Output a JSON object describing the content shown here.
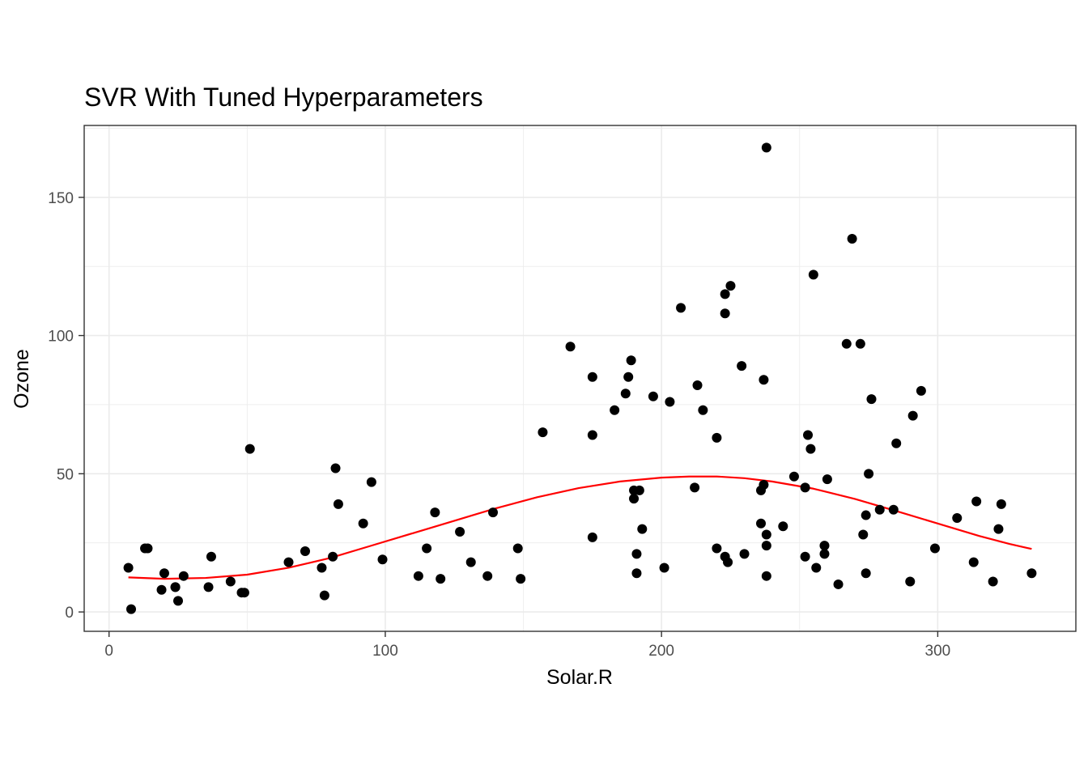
{
  "chart_data": {
    "type": "scatter",
    "title": "SVR With Tuned Hyperparameters",
    "xlabel": "Solar.R",
    "ylabel": "Ozone",
    "xlim": [
      -9,
      350
    ],
    "ylim": [
      -7,
      176
    ],
    "x_ticks": [
      0,
      100,
      200,
      300
    ],
    "y_ticks": [
      0,
      50,
      100,
      150
    ],
    "grid": true,
    "legend": "none",
    "colors": {
      "points": "#000000",
      "fit_line": "#ff0000",
      "grid": "#ebebeb",
      "panel_border": "#333333"
    },
    "points": [
      {
        "x": 7,
        "y": 16
      },
      {
        "x": 8,
        "y": 1
      },
      {
        "x": 13,
        "y": 23
      },
      {
        "x": 14,
        "y": 23
      },
      {
        "x": 19,
        "y": 8
      },
      {
        "x": 20,
        "y": 14
      },
      {
        "x": 24,
        "y": 9
      },
      {
        "x": 24,
        "y": 9
      },
      {
        "x": 25,
        "y": 4
      },
      {
        "x": 27,
        "y": 13
      },
      {
        "x": 36,
        "y": 9
      },
      {
        "x": 37,
        "y": 20
      },
      {
        "x": 44,
        "y": 11
      },
      {
        "x": 48,
        "y": 7
      },
      {
        "x": 49,
        "y": 7
      },
      {
        "x": 51,
        "y": 59
      },
      {
        "x": 65,
        "y": 18
      },
      {
        "x": 71,
        "y": 22
      },
      {
        "x": 77,
        "y": 16
      },
      {
        "x": 78,
        "y": 6
      },
      {
        "x": 81,
        "y": 20
      },
      {
        "x": 82,
        "y": 52
      },
      {
        "x": 83,
        "y": 39
      },
      {
        "x": 92,
        "y": 32
      },
      {
        "x": 95,
        "y": 47
      },
      {
        "x": 99,
        "y": 19
      },
      {
        "x": 112,
        "y": 13
      },
      {
        "x": 115,
        "y": 23
      },
      {
        "x": 118,
        "y": 36
      },
      {
        "x": 120,
        "y": 12
      },
      {
        "x": 127,
        "y": 29
      },
      {
        "x": 131,
        "y": 18
      },
      {
        "x": 137,
        "y": 13
      },
      {
        "x": 139,
        "y": 36
      },
      {
        "x": 148,
        "y": 23
      },
      {
        "x": 149,
        "y": 12
      },
      {
        "x": 157,
        "y": 65
      },
      {
        "x": 167,
        "y": 96
      },
      {
        "x": 175,
        "y": 85
      },
      {
        "x": 175,
        "y": 64
      },
      {
        "x": 175,
        "y": 27
      },
      {
        "x": 183,
        "y": 73
      },
      {
        "x": 187,
        "y": 79
      },
      {
        "x": 188,
        "y": 85
      },
      {
        "x": 189,
        "y": 91
      },
      {
        "x": 190,
        "y": 44
      },
      {
        "x": 190,
        "y": 41
      },
      {
        "x": 191,
        "y": 21
      },
      {
        "x": 191,
        "y": 14
      },
      {
        "x": 192,
        "y": 44
      },
      {
        "x": 193,
        "y": 30
      },
      {
        "x": 197,
        "y": 78
      },
      {
        "x": 201,
        "y": 16
      },
      {
        "x": 203,
        "y": 76
      },
      {
        "x": 207,
        "y": 110
      },
      {
        "x": 212,
        "y": 45
      },
      {
        "x": 213,
        "y": 82
      },
      {
        "x": 215,
        "y": 73
      },
      {
        "x": 220,
        "y": 63
      },
      {
        "x": 220,
        "y": 23
      },
      {
        "x": 223,
        "y": 115
      },
      {
        "x": 223,
        "y": 108
      },
      {
        "x": 223,
        "y": 20
      },
      {
        "x": 224,
        "y": 18
      },
      {
        "x": 225,
        "y": 118
      },
      {
        "x": 229,
        "y": 89
      },
      {
        "x": 230,
        "y": 21
      },
      {
        "x": 236,
        "y": 44
      },
      {
        "x": 236,
        "y": 32
      },
      {
        "x": 237,
        "y": 84
      },
      {
        "x": 237,
        "y": 46
      },
      {
        "x": 238,
        "y": 168
      },
      {
        "x": 238,
        "y": 28
      },
      {
        "x": 238,
        "y": 24
      },
      {
        "x": 238,
        "y": 13
      },
      {
        "x": 244,
        "y": 31
      },
      {
        "x": 248,
        "y": 49
      },
      {
        "x": 252,
        "y": 45
      },
      {
        "x": 252,
        "y": 20
      },
      {
        "x": 253,
        "y": 64
      },
      {
        "x": 254,
        "y": 59
      },
      {
        "x": 255,
        "y": 122
      },
      {
        "x": 256,
        "y": 16
      },
      {
        "x": 259,
        "y": 24
      },
      {
        "x": 259,
        "y": 21
      },
      {
        "x": 260,
        "y": 48
      },
      {
        "x": 264,
        "y": 10
      },
      {
        "x": 267,
        "y": 97
      },
      {
        "x": 269,
        "y": 135
      },
      {
        "x": 272,
        "y": 97
      },
      {
        "x": 273,
        "y": 28
      },
      {
        "x": 274,
        "y": 35
      },
      {
        "x": 274,
        "y": 14
      },
      {
        "x": 275,
        "y": 50
      },
      {
        "x": 276,
        "y": 77
      },
      {
        "x": 279,
        "y": 37
      },
      {
        "x": 284,
        "y": 37
      },
      {
        "x": 285,
        "y": 61
      },
      {
        "x": 290,
        "y": 11
      },
      {
        "x": 291,
        "y": 71
      },
      {
        "x": 294,
        "y": 80
      },
      {
        "x": 299,
        "y": 23
      },
      {
        "x": 307,
        "y": 34
      },
      {
        "x": 313,
        "y": 18
      },
      {
        "x": 314,
        "y": 40
      },
      {
        "x": 320,
        "y": 11
      },
      {
        "x": 322,
        "y": 30
      },
      {
        "x": 323,
        "y": 39
      },
      {
        "x": 334,
        "y": 14
      }
    ],
    "fit_line": {
      "x": [
        7,
        20,
        35,
        50,
        65,
        80,
        95,
        110,
        125,
        140,
        155,
        170,
        185,
        200,
        210,
        220,
        230,
        240,
        255,
        270,
        285,
        300,
        315,
        326,
        334
      ],
      "y": [
        12.5,
        12.0,
        12.3,
        13.5,
        16.0,
        19.5,
        24.0,
        28.5,
        33.0,
        37.5,
        41.5,
        44.8,
        47.2,
        48.6,
        49.0,
        49.0,
        48.4,
        47.2,
        44.6,
        40.9,
        36.5,
        32.0,
        27.5,
        24.6,
        22.8
      ]
    }
  }
}
